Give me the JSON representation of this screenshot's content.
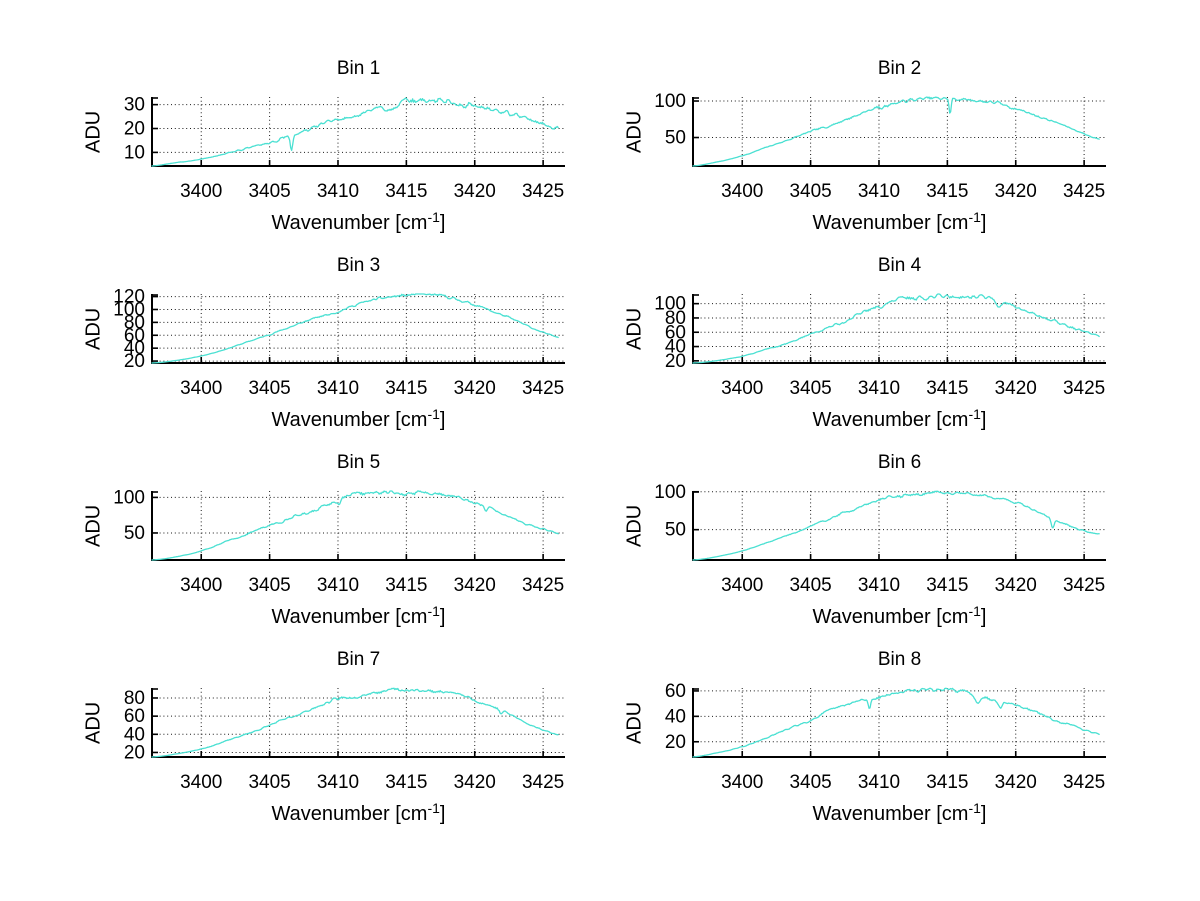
{
  "figure": {
    "background": "#ffffff",
    "line_color": "#4ae0d2",
    "grid_color": "#1a1a1a",
    "axis_color": "#000000",
    "text_color": "#000000"
  },
  "chart_data": {
    "type": "line",
    "ylabel": "ADU",
    "xlabel": "Wavenumber [cm-1]",
    "xlabel_parts": {
      "pre": "Wavenumber [cm",
      "sup": "-1",
      "post": "]"
    },
    "x_ticks": [
      3400,
      3405,
      3410,
      3415,
      3420,
      3425
    ],
    "xlim": [
      3396.4,
      3426.6
    ],
    "x_control": [
      3396.4,
      3398,
      3400,
      3402,
      3404,
      3406,
      3408,
      3410,
      3412,
      3414,
      3416,
      3418,
      3420,
      3422,
      3424,
      3426.1
    ],
    "grid": true,
    "legend": false,
    "plots": [
      {
        "title": "Bin 1",
        "y_ticks": [
          10,
          20,
          30
        ],
        "ylim": [
          4.3,
          33.2
        ],
        "values": [
          4.3,
          5.6,
          7.2,
          9.8,
          12.6,
          15.8,
          19.8,
          23.2,
          26.6,
          29.6,
          31.6,
          31.4,
          29.8,
          27.2,
          23.8,
          20.3
        ],
        "dips": [
          {
            "x": 3406.6,
            "depth": 6,
            "w": 0.12
          }
        ],
        "noise": 1.8,
        "seed": 3
      },
      {
        "title": "Bin 2",
        "y_ticks": [
          50,
          100
        ],
        "ylim": [
          11,
          105.5
        ],
        "values": [
          11,
          16,
          25,
          38,
          51,
          64,
          78,
          92,
          100,
          103,
          102.5,
          99,
          90,
          77,
          63,
          48.5
        ],
        "dips": [
          {
            "x": 3415.2,
            "depth": 22,
            "w": 0.1
          },
          {
            "x": 3410.2,
            "depth": 4,
            "w": 0.12
          }
        ],
        "noise": 3.2,
        "seed": 7
      },
      {
        "title": "Bin 3",
        "y_ticks": [
          20,
          40,
          60,
          80,
          100,
          120
        ],
        "ylim": [
          17,
          124
        ],
        "values": [
          17,
          20.5,
          28,
          40,
          54,
          69,
          84,
          98,
          111,
          119.5,
          122,
          119,
          107.5,
          91,
          73,
          56.5
        ],
        "dips": [],
        "noise": 3.2,
        "seed": 11
      },
      {
        "title": "Bin 4",
        "y_ticks": [
          20,
          40,
          60,
          80,
          100
        ],
        "ylim": [
          17,
          113.5
        ],
        "values": [
          17,
          20,
          26.5,
          37,
          50,
          64.5,
          80,
          96,
          107,
          110,
          110.5,
          107.5,
          95,
          81,
          67,
          56
        ],
        "dips": [
          {
            "x": 3418.7,
            "depth": 6,
            "w": 0.2
          }
        ],
        "noise": 4.2,
        "seed": 13
      },
      {
        "title": "Bin 5",
        "y_ticks": [
          50,
          100
        ],
        "ylim": [
          12,
          109
        ],
        "values": [
          12,
          16,
          25,
          39,
          53.5,
          67.5,
          81,
          95.5,
          104.5,
          106.5,
          105.5,
          102.5,
          92,
          76.5,
          61.5,
          50
        ],
        "dips": [
          {
            "x": 3410.1,
            "depth": 4,
            "w": 0.12
          },
          {
            "x": 3420.8,
            "depth": 6,
            "w": 0.15
          }
        ],
        "noise": 4.0,
        "seed": 17
      },
      {
        "title": "Bin 6",
        "y_ticks": [
          50,
          100
        ],
        "ylim": [
          10,
          101
        ],
        "values": [
          10,
          14,
          22,
          34,
          47.5,
          61.5,
          76,
          89,
          95.5,
          98.5,
          98.5,
          94.5,
          86,
          70,
          54,
          45
        ],
        "dips": [
          {
            "x": 3422.7,
            "depth": 11,
            "w": 0.15
          }
        ],
        "noise": 2.8,
        "seed": 19
      },
      {
        "title": "Bin 7",
        "y_ticks": [
          20,
          40,
          60,
          80
        ],
        "ylim": [
          15,
          91
        ],
        "values": [
          15,
          18,
          24,
          33.5,
          44,
          55.5,
          67.5,
          78.5,
          85.5,
          88.5,
          88.5,
          86,
          78.5,
          66,
          51,
          40.5
        ],
        "dips": [
          {
            "x": 3421.9,
            "depth": 4,
            "w": 0.15
          }
        ],
        "noise": 2.6,
        "seed": 23
      },
      {
        "title": "Bin 8",
        "y_ticks": [
          20,
          40,
          60
        ],
        "ylim": [
          8,
          62.3
        ],
        "values": [
          8,
          11,
          16,
          24,
          33,
          42,
          50,
          55.5,
          59.5,
          60.5,
          59.5,
          55,
          49,
          41,
          33,
          26
        ],
        "dips": [
          {
            "x": 3409.3,
            "depth": 8,
            "w": 0.12
          },
          {
            "x": 3417.2,
            "depth": 5,
            "w": 0.22
          },
          {
            "x": 3418.9,
            "depth": 4,
            "w": 0.18
          }
        ],
        "noise": 2.0,
        "seed": 29
      }
    ]
  }
}
